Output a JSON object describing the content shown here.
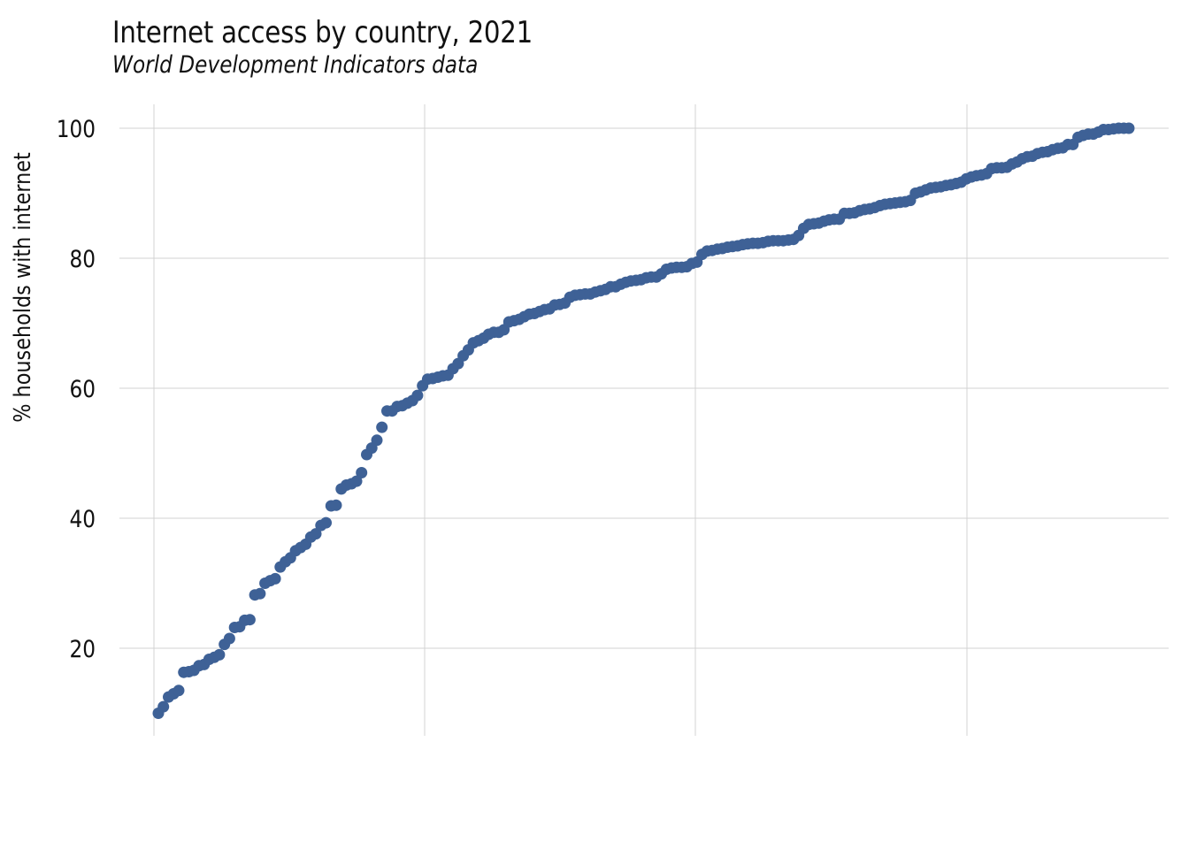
{
  "chart_data": {
    "type": "scatter",
    "title": "Internet access by country, 2021",
    "subtitle": "World Development Indicators data",
    "xlabel": "",
    "ylabel": "% households with internet",
    "x_tick_labels_shown": false,
    "ylim": [
      8,
      103.7
    ],
    "yticks": [
      20,
      40,
      60,
      80,
      100
    ],
    "grid": true,
    "color": "#3e6196",
    "y": [
      10.0,
      11.0,
      12.5,
      13.0,
      13.5,
      16.3,
      16.4,
      16.6,
      17.3,
      17.5,
      18.3,
      18.6,
      19.0,
      20.6,
      21.5,
      23.2,
      23.3,
      24.3,
      24.4,
      28.2,
      28.4,
      30.0,
      30.4,
      30.7,
      32.5,
      33.3,
      33.9,
      35.0,
      35.5,
      36.0,
      37.1,
      37.6,
      38.9,
      39.3,
      41.9,
      42.0,
      44.5,
      45.1,
      45.3,
      45.7,
      47.0,
      49.8,
      50.8,
      52.0,
      54.0,
      56.5,
      56.5,
      57.2,
      57.3,
      57.7,
      58.1,
      58.9,
      60.4,
      61.4,
      61.5,
      61.7,
      61.9,
      62.0,
      63.0,
      63.8,
      65.0,
      65.9,
      67.0,
      67.3,
      67.7,
      68.3,
      68.6,
      68.6,
      69.0,
      70.2,
      70.4,
      70.6,
      71.0,
      71.4,
      71.5,
      71.8,
      72.1,
      72.2,
      72.8,
      72.9,
      73.1,
      74.0,
      74.3,
      74.4,
      74.5,
      74.5,
      74.8,
      75.0,
      75.2,
      75.6,
      75.6,
      76.0,
      76.3,
      76.5,
      76.6,
      76.7,
      77.0,
      77.1,
      77.1,
      77.6,
      78.3,
      78.5,
      78.6,
      78.6,
      78.7,
      79.2,
      79.4,
      80.6,
      81.1,
      81.2,
      81.4,
      81.5,
      81.7,
      81.8,
      81.9,
      82.1,
      82.2,
      82.3,
      82.3,
      82.4,
      82.6,
      82.7,
      82.7,
      82.7,
      82.8,
      82.9,
      83.5,
      84.6,
      85.2,
      85.3,
      85.4,
      85.7,
      85.9,
      86.0,
      86.0,
      86.9,
      86.9,
      87.0,
      87.3,
      87.5,
      87.6,
      87.8,
      88.1,
      88.3,
      88.4,
      88.5,
      88.6,
      88.7,
      88.9,
      90.0,
      90.2,
      90.5,
      90.8,
      90.9,
      91.0,
      91.2,
      91.3,
      91.5,
      91.7,
      92.2,
      92.5,
      92.7,
      92.8,
      93.0,
      93.8,
      93.9,
      93.9,
      94.0,
      94.5,
      94.8,
      95.3,
      95.6,
      95.7,
      96.1,
      96.3,
      96.4,
      96.7,
      96.9,
      97.0,
      97.5,
      97.5,
      98.6,
      98.9,
      99.1,
      99.1,
      99.4,
      99.8,
      99.8,
      99.9,
      100.0,
      100.0,
      100.0
    ]
  }
}
